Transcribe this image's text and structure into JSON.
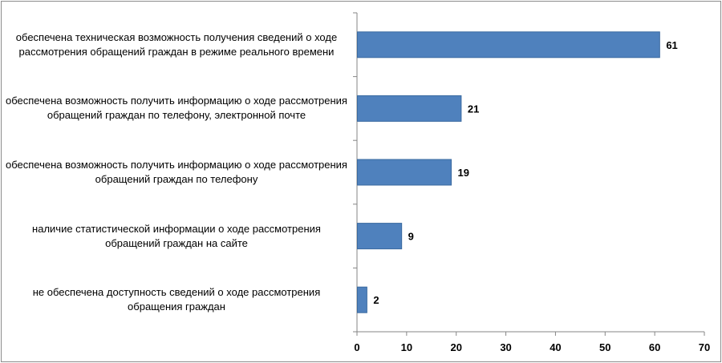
{
  "chart_data": {
    "type": "bar",
    "orientation": "horizontal",
    "title": "",
    "xlabel": "",
    "ylabel": "",
    "categories": [
      "обеспечена техническая возможность получения сведений о ходе рассмотрения обращений граждан в режиме реального времени",
      "обеспечена возможность получить информацию о ходе рассмотрения обращений граждан по телефону, электронной почте",
      "обеспечена возможность получить информацию о ходе рассмотрения обращений граждан по телефону",
      "наличие статистической информации о ходе рассмотрения обращений граждан на сайте",
      "не обеспечена доступность сведений о ходе рассмотрения обращения граждан"
    ],
    "values": [
      61,
      21,
      19,
      9,
      2
    ],
    "value_labels": [
      "61",
      "21",
      "19",
      "9",
      "2"
    ],
    "xlim": [
      0,
      70
    ],
    "ticks": [
      0,
      10,
      20,
      30,
      40,
      50,
      60,
      70
    ],
    "tick_labels": [
      "0",
      "10",
      "20",
      "30",
      "40",
      "50",
      "60",
      "70"
    ],
    "grid": false,
    "legend": "none",
    "bar_color": "#4f81bd",
    "bar_border_color": "#3a6aa0"
  }
}
